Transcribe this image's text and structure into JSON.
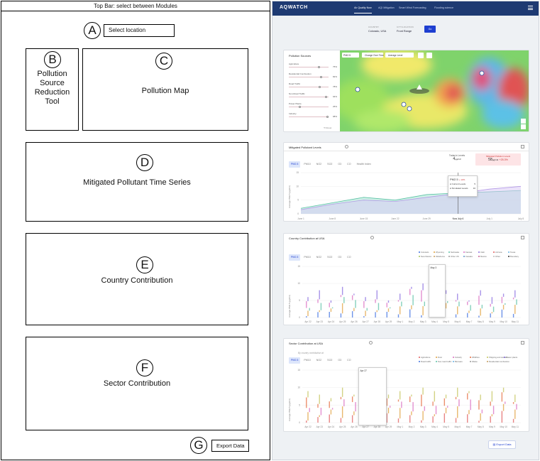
{
  "wireframe": {
    "topbar": "Top Bar: select between Modules",
    "sections": {
      "A": {
        "letter": "A",
        "label": "Select location"
      },
      "B": {
        "letter": "B",
        "lines": [
          "Pollution",
          "Source",
          "Reduction",
          "Tool"
        ]
      },
      "C": {
        "letter": "C",
        "label": "Pollution Map"
      },
      "D": {
        "letter": "D",
        "label": "Mitigated Pollutant Time Series"
      },
      "E": {
        "letter": "E",
        "label": "Country Contribution"
      },
      "F": {
        "letter": "F",
        "label": "Sector Contribution"
      },
      "G": {
        "letter": "G",
        "label": "Export Data"
      }
    }
  },
  "app": {
    "brand": "AQWATCH",
    "nav_tabs": [
      "Air Quality Now",
      "AQI Mitigation",
      "Smart Wind Forecasting",
      "Flooding science"
    ],
    "active_tab": 0,
    "location": {
      "country_caption": "COUNTRY",
      "country_value": "Colorado, USA",
      "city_caption": "CITY/LOCATION",
      "city_value": "Front Range",
      "go_label": "Go"
    },
    "sources_card": {
      "title": "Pollution Sources",
      "sliders": [
        {
          "label": "Agriculture",
          "value": "75%",
          "level": 0.75
        },
        {
          "label": "Residential Combustion",
          "value": "82%",
          "level": 0.82
        },
        {
          "label": "Road Traffic",
          "value": "78%",
          "level": 0.78
        },
        {
          "label": "Non-Road Traffic",
          "value": "94%",
          "level": 0.94
        },
        {
          "label": "Power Plants",
          "value": "25%",
          "level": 0.25
        },
        {
          "label": "Industry",
          "value": "98%",
          "level": 0.98
        }
      ],
      "reset_label": "Reset",
      "map_pollutant": "PM2.5",
      "map_mode_a": "Change Over Time",
      "map_mode_b": "Average Level"
    },
    "mitigated_card": {
      "title": "Mitigated Pollutant Levels",
      "pollutants": [
        "PM2.5",
        "PM10",
        "NO2",
        "SO2",
        "O3",
        "CO",
        "Health Index"
      ],
      "today_label": "Today's Levels",
      "today_value": "4",
      "today_unit": "µg/m3",
      "mitigated_label": "Mitigated Pollution Levels",
      "mitigated_value": "58",
      "mitigated_unit": "µg/m3",
      "mitigated_change": "+25.3%",
      "ylabel": "Average PM2.5 (µg/m3)",
      "tooltip": {
        "title": "PM2.5",
        "change": "+ 12%",
        "row1": "Current Levels",
        "row1_value": "5",
        "row2": "Simulated Levels",
        "row2_value": "10"
      }
    },
    "country_card": {
      "title": "Country Contribution at USA",
      "pollutants": [
        "PM2.5",
        "PM10",
        "NO2",
        "SO2",
        "O3",
        "CO"
      ],
      "legend": [
        {
          "name": "Colorado",
          "color": "#3d6fe0"
        },
        {
          "name": "Wyoming",
          "color": "#e0a03d"
        },
        {
          "name": "Nebraska",
          "color": "#5cc1a6"
        },
        {
          "name": "Kansas",
          "color": "#d96cc0"
        },
        {
          "name": "Utah",
          "color": "#8a6de0"
        },
        {
          "name": "Arizona",
          "color": "#e05c5c"
        },
        {
          "name": "Texas",
          "color": "#66b3e6"
        },
        {
          "name": "New Mexico",
          "color": "#a3c45c"
        },
        {
          "name": "Oklahoma",
          "color": "#c49b5c"
        },
        {
          "name": "Other US",
          "color": "#999999"
        },
        {
          "name": "Canada",
          "color": "#5c8fc4"
        },
        {
          "name": "Mexico",
          "color": "#c45c8f"
        },
        {
          "name": "Other",
          "color": "#bbbbbb"
        },
        {
          "name": "Boundary",
          "color": "#333333"
        }
      ],
      "ylabel": "Average PM2.5 (µg/m3)",
      "tooltip_title": "May 3"
    },
    "sector_card": {
      "title": "Sector Contribution at USA",
      "subtitle": "By country contribution at",
      "pollutants": [
        "PM2.5",
        "PM10",
        "NO2",
        "SO2",
        "O3",
        "CO"
      ],
      "legend": [
        {
          "name": "Agriculture",
          "color": "#e05c5c"
        },
        {
          "name": "Dust",
          "color": "#e0a03d"
        },
        {
          "name": "Industry",
          "color": "#d96cc0"
        },
        {
          "name": "Wildfires",
          "color": "#e66b3d"
        },
        {
          "name": "Shipping and aviation",
          "color": "#c4c45c"
        },
        {
          "name": "Power plants",
          "color": "#8a6de0"
        },
        {
          "name": "Road traffic",
          "color": "#3d6fe0"
        },
        {
          "name": "Non-road traffic",
          "color": "#5cc1a6"
        },
        {
          "name": "Biomass",
          "color": "#66b3e6"
        },
        {
          "name": "Waste",
          "color": "#999999"
        },
        {
          "name": "Residential combustion",
          "color": "#c49b5c"
        }
      ],
      "ylabel": "Average PM2.5 (µg/m3)",
      "tooltip_title": "Apr 27"
    },
    "dates_timeseries": [
      "June 1",
      "June 8",
      "June 15",
      "June 22",
      "June 29",
      "Now July 6",
      "July 1",
      "July 8"
    ],
    "dates_bars": [
      "Apr 22",
      "Apr 23",
      "Apr 24",
      "Apr 25",
      "Apr 26",
      "Apr 27",
      "Apr 28",
      "Apr 29",
      "May 1",
      "May 2",
      "May 3",
      "May 4",
      "May 5",
      "May 6",
      "May 7",
      "May 8",
      "May 9",
      "May 10",
      "May 11"
    ],
    "y_ticks": [
      "15",
      "10",
      "5",
      "0"
    ],
    "export_label": "Export Data"
  },
  "chart_data": [
    {
      "type": "line",
      "x": [
        "June 1",
        "June 8",
        "June 15",
        "June 22",
        "June 29",
        "Now July 6",
        "July 1",
        "July 8"
      ],
      "series": [
        {
          "name": "Current Levels",
          "values": [
            2,
            4,
            6,
            5,
            7,
            7.6,
            8,
            8.5
          ]
        },
        {
          "name": "Simulated Levels",
          "values": [
            1.5,
            3.5,
            5,
            4.5,
            6,
            7.4,
            9,
            10
          ]
        }
      ],
      "ylim": [
        0,
        15
      ]
    },
    {
      "type": "bar",
      "categories": [
        "Apr 22",
        "Apr 23",
        "Apr 24",
        "Apr 25",
        "Apr 26",
        "Apr 27",
        "Apr 28",
        "Apr 29",
        "May 1",
        "May 2",
        "May 3",
        "May 4",
        "May 5",
        "May 6",
        "May 7",
        "May 8",
        "May 9",
        "May 10",
        "May 11"
      ],
      "values": [
        6,
        8,
        5,
        9,
        7,
        6,
        8,
        5,
        7,
        9,
        10,
        6,
        8,
        7,
        5,
        8,
        6,
        7,
        8
      ],
      "ylim": [
        0,
        15
      ]
    },
    {
      "type": "bar",
      "categories": [
        "Apr 22",
        "Apr 23",
        "Apr 24",
        "Apr 25",
        "Apr 26",
        "Apr 27",
        "Apr 28",
        "Apr 29",
        "May 1",
        "May 2",
        "May 3",
        "May 4",
        "May 5",
        "May 6",
        "May 7",
        "May 8",
        "May 9",
        "May 10",
        "May 11"
      ],
      "values": [
        9,
        8,
        7,
        10,
        8,
        12,
        9,
        8,
        9,
        8,
        10,
        9,
        8,
        10,
        9,
        8,
        9,
        10,
        8
      ],
      "ylim": [
        0,
        15
      ]
    }
  ]
}
